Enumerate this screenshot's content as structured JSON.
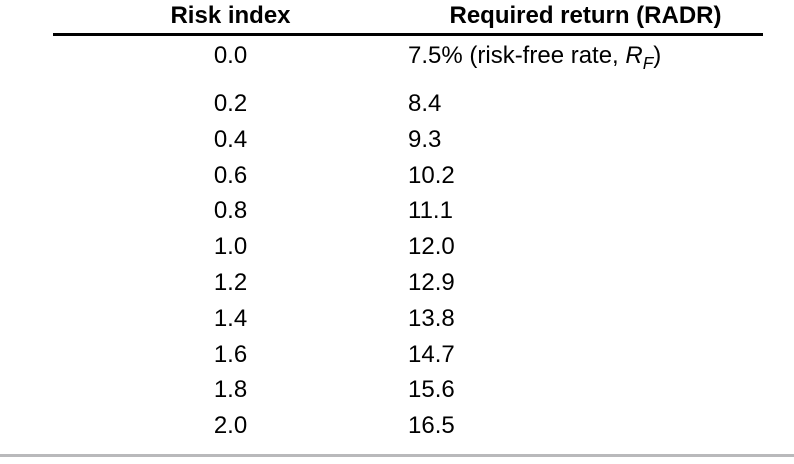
{
  "page": {
    "background_color": "#ffffff",
    "text_color": "#000000",
    "header_rule_color": "#000000",
    "bottom_rule_color": "#b9b9bb"
  },
  "table": {
    "columns": [
      {
        "label": "Risk index"
      },
      {
        "label": "Required return (RADR)"
      }
    ],
    "first_row": {
      "risk_index": "0.0",
      "return_prefix": "7.5% (risk-free rate, ",
      "symbol": "R",
      "symbol_subscript": "F",
      "return_suffix": ")"
    },
    "rows": [
      {
        "risk_index": "0.2",
        "required_return": "8.4"
      },
      {
        "risk_index": "0.4",
        "required_return": "9.3"
      },
      {
        "risk_index": "0.6",
        "required_return": "10.2"
      },
      {
        "risk_index": "0.8",
        "required_return": "11.1"
      },
      {
        "risk_index": "1.0",
        "required_return": "12.0"
      },
      {
        "risk_index": "1.2",
        "required_return": "12.9"
      },
      {
        "risk_index": "1.4",
        "required_return": "13.8"
      },
      {
        "risk_index": "1.6",
        "required_return": "14.7"
      },
      {
        "risk_index": "1.8",
        "required_return": "15.6"
      },
      {
        "risk_index": "2.0",
        "required_return": "16.5"
      }
    ]
  }
}
